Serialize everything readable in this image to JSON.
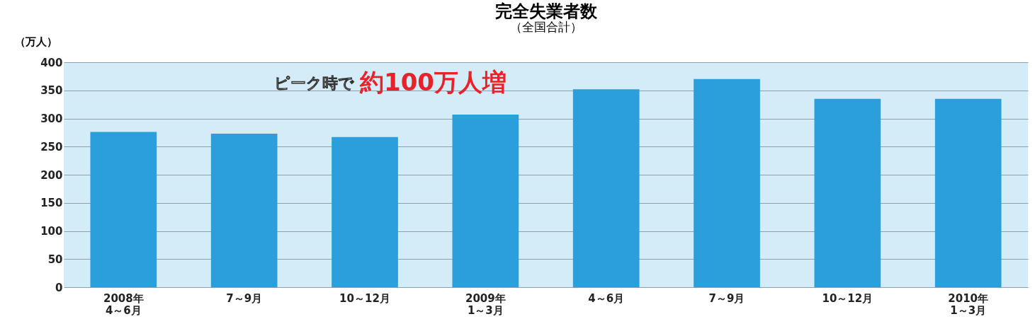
{
  "chart_data": {
    "type": "bar",
    "title": "完全失業者数",
    "subtitle": "（全国合計）",
    "ylabel": "（万人）",
    "categories": [
      "2008年\n4～6月",
      "7～9月",
      "10～12月",
      "2009年\n1～3月",
      "4～6月",
      "7～9月",
      "10～12月",
      "2010年\n1～3月"
    ],
    "values": [
      276,
      273,
      267,
      307,
      352,
      370,
      335,
      335
    ],
    "color": "#2a9fdc",
    "ylim": [
      0,
      400
    ],
    "yticks": [
      0,
      50,
      100,
      150,
      200,
      250,
      300,
      350,
      400
    ],
    "grid": "y",
    "annotations": [
      "ピーク時で",
      "約100万人増"
    ]
  }
}
